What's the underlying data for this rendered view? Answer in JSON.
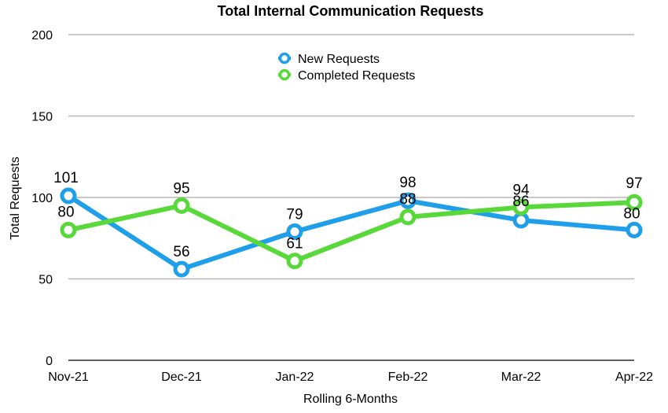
{
  "chart_data": {
    "type": "line",
    "title": "Total Internal Communication Requests",
    "xlabel": "Rolling 6-Months",
    "ylabel": "Total Requests",
    "ylim": [
      0,
      200
    ],
    "y_ticks": [
      0,
      50,
      100,
      150,
      200
    ],
    "categories": [
      "Nov-21",
      "Dec-21",
      "Jan-22",
      "Feb-22",
      "Mar-22",
      "Apr-22"
    ],
    "grid": true,
    "legend_position": "top-center",
    "series": [
      {
        "name": "New Requests",
        "color": "#1f9fea",
        "values": [
          101,
          56,
          79,
          98,
          86,
          80
        ]
      },
      {
        "name": "Completed Requests",
        "color": "#59d83a",
        "values": [
          80,
          95,
          61,
          88,
          94,
          97
        ]
      }
    ]
  }
}
